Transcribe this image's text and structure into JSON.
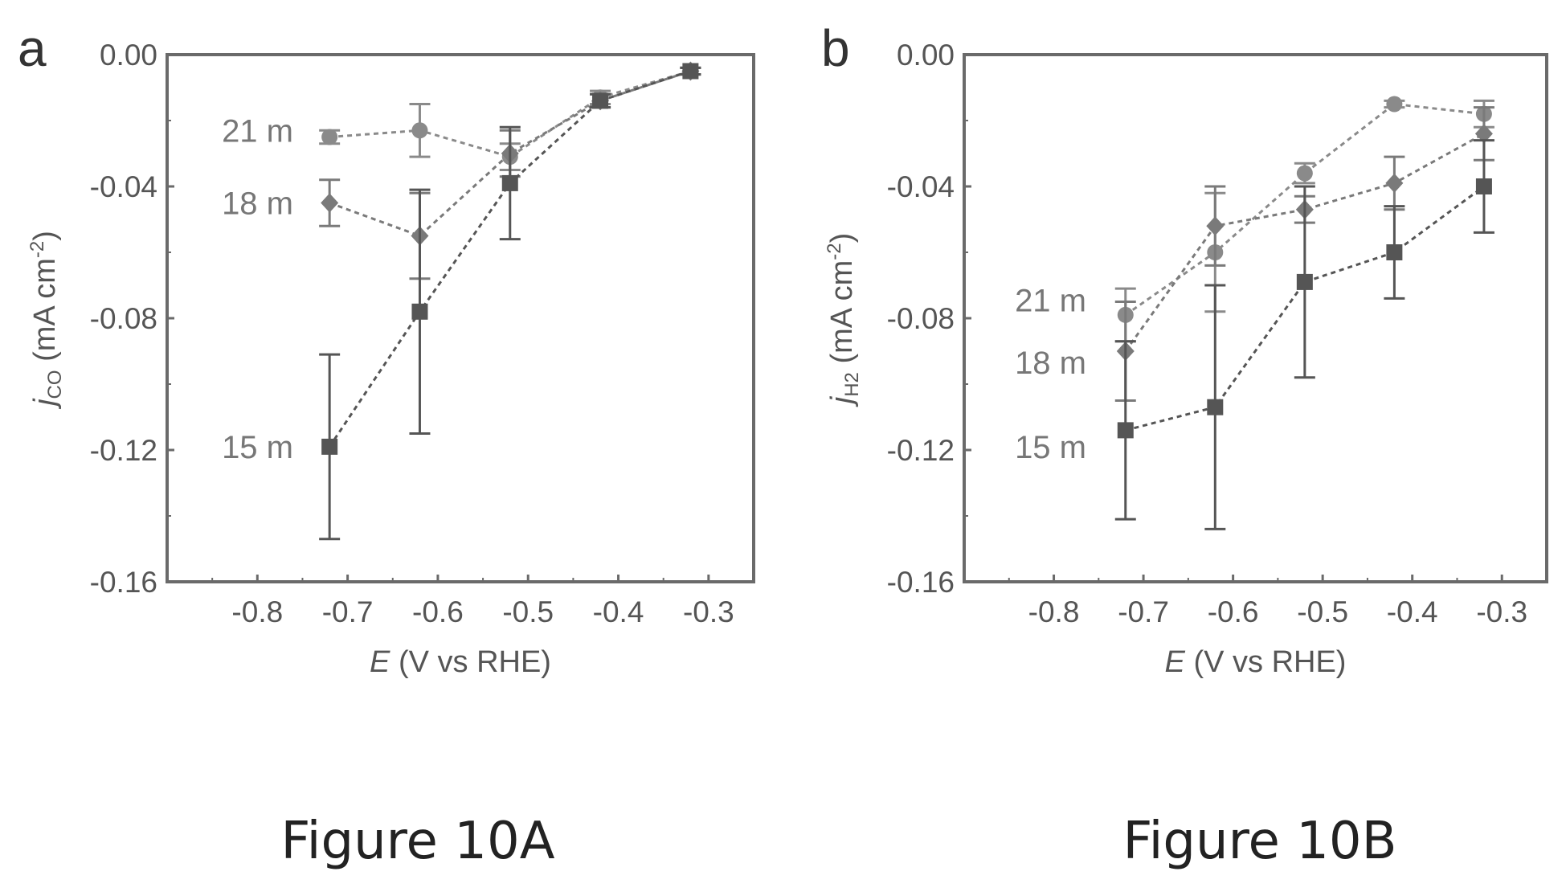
{
  "captions": [
    "Figure 10A",
    "Figure 10B"
  ],
  "chart_data": [
    {
      "type": "scatter",
      "panel_label": "a",
      "xlabel": "E (V vs RHE)",
      "xlabel_italic": "E",
      "xlabel_rest": " (V vs RHE)",
      "ylabel": "jCO (mA cm-2)",
      "ylabel_j": "j",
      "ylabel_sub": "CO",
      "ylabel_unit": " (mA cm",
      "ylabel_sup": "-2",
      "ylabel_close": ")",
      "xlim": [
        -0.9,
        -0.25
      ],
      "ylim": [
        -0.16,
        0.0
      ],
      "xticks": [
        -0.8,
        -0.7,
        -0.6,
        -0.5,
        -0.4,
        -0.3
      ],
      "xtick_labels": [
        "-0.8",
        "-0.7",
        "-0.6",
        "-0.5",
        "-0.4",
        "-0.3"
      ],
      "yticks": [
        0.0,
        -0.04,
        -0.08,
        -0.12,
        -0.16
      ],
      "ytick_labels": [
        "0.00",
        "-0.04",
        "-0.08",
        "-0.12",
        "-0.16"
      ],
      "grid": false,
      "series": [
        {
          "name": "21 m",
          "marker": "circle",
          "color": "#8a8a8a",
          "x": [
            -0.72,
            -0.62,
            -0.52,
            -0.42,
            -0.32
          ],
          "y": [
            -0.025,
            -0.023,
            -0.031,
            -0.013,
            -0.005
          ],
          "err": [
            0.002,
            0.008,
            0.004,
            0.002,
            0.001
          ]
        },
        {
          "name": "18 m",
          "marker": "diamond",
          "color": "#7a7a7a",
          "x": [
            -0.72,
            -0.62,
            -0.52,
            -0.42,
            -0.32
          ],
          "y": [
            -0.045,
            -0.055,
            -0.03,
            -0.014,
            -0.005
          ],
          "err": [
            0.007,
            0.013,
            0.007,
            0.002,
            0.001
          ]
        },
        {
          "name": "15 m",
          "marker": "square",
          "color": "#555555",
          "x": [
            -0.72,
            -0.62,
            -0.52,
            -0.42,
            -0.32
          ],
          "y": [
            -0.119,
            -0.078,
            -0.039,
            -0.014,
            -0.005
          ],
          "err": [
            0.028,
            0.037,
            0.017,
            0.002,
            0.001
          ]
        }
      ]
    },
    {
      "type": "scatter",
      "panel_label": "b",
      "xlabel": "E (V vs RHE)",
      "xlabel_italic": "E",
      "xlabel_rest": " (V vs RHE)",
      "ylabel": "jH2 (mA cm-2)",
      "ylabel_j": "j",
      "ylabel_sub": "H2",
      "ylabel_unit": " (mA cm",
      "ylabel_sup": "-2",
      "ylabel_close": ")",
      "xlim": [
        -0.9,
        -0.25
      ],
      "ylim": [
        -0.16,
        0.0
      ],
      "xticks": [
        -0.8,
        -0.7,
        -0.6,
        -0.5,
        -0.4,
        -0.3
      ],
      "xtick_labels": [
        "-0.8",
        "-0.7",
        "-0.6",
        "-0.5",
        "-0.4",
        "-0.3"
      ],
      "yticks": [
        0.0,
        -0.04,
        -0.08,
        -0.12,
        -0.16
      ],
      "ytick_labels": [
        "0.00",
        "-0.04",
        "-0.08",
        "-0.12",
        "-0.16"
      ],
      "grid": false,
      "series": [
        {
          "name": "21 m",
          "marker": "circle",
          "color": "#8a8a8a",
          "x": [
            -0.72,
            -0.62,
            -0.52,
            -0.42,
            -0.32
          ],
          "y": [
            -0.079,
            -0.06,
            -0.036,
            -0.015,
            -0.018
          ],
          "err": [
            0.008,
            0.018,
            0.003,
            0.001,
            0.004
          ]
        },
        {
          "name": "18 m",
          "marker": "diamond",
          "color": "#7a7a7a",
          "x": [
            -0.72,
            -0.62,
            -0.52,
            -0.42,
            -0.32
          ],
          "y": [
            -0.09,
            -0.052,
            -0.047,
            -0.039,
            -0.024
          ],
          "err": [
            0.015,
            0.012,
            0.004,
            0.008,
            0.008
          ]
        },
        {
          "name": "15 m",
          "marker": "square",
          "color": "#555555",
          "x": [
            -0.72,
            -0.62,
            -0.52,
            -0.42,
            -0.32
          ],
          "y": [
            -0.114,
            -0.107,
            -0.069,
            -0.06,
            -0.04
          ],
          "err": [
            0.027,
            0.037,
            0.029,
            0.014,
            0.014
          ]
        }
      ]
    }
  ]
}
